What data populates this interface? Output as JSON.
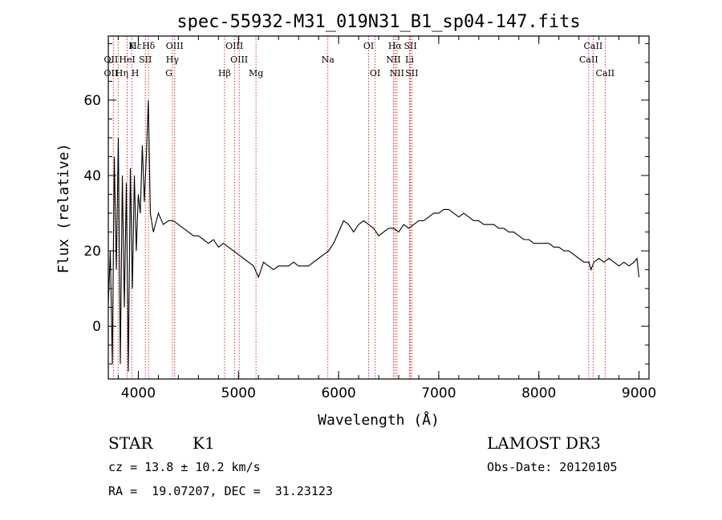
{
  "chart_data": {
    "type": "line",
    "title": "spec-55932-M31_019N31_B1_sp04-147.fits",
    "xlabel": "Wavelength (Å)",
    "ylabel": "Flux (relative)",
    "xlim": [
      3700,
      9100
    ],
    "ylim": [
      -14,
      77
    ],
    "xticks": [
      4000,
      5000,
      6000,
      7000,
      8000,
      9000
    ],
    "yticks": [
      0,
      20,
      40,
      60
    ],
    "series": [
      {
        "name": "flux",
        "x": [
          3700,
          3720,
          3740,
          3760,
          3780,
          3800,
          3820,
          3840,
          3860,
          3880,
          3900,
          3920,
          3940,
          3960,
          3980,
          4000,
          4020,
          4040,
          4060,
          4080,
          4100,
          4120,
          4150,
          4200,
          4250,
          4300,
          4350,
          4400,
          4450,
          4500,
          4550,
          4600,
          4650,
          4700,
          4750,
          4800,
          4850,
          4900,
          4950,
          5000,
          5050,
          5100,
          5150,
          5200,
          5250,
          5300,
          5350,
          5400,
          5450,
          5500,
          5550,
          5600,
          5650,
          5700,
          5750,
          5800,
          5850,
          5900,
          5950,
          6000,
          6050,
          6100,
          6150,
          6200,
          6250,
          6300,
          6350,
          6400,
          6450,
          6500,
          6550,
          6600,
          6650,
          6700,
          6750,
          6800,
          6850,
          6900,
          6950,
          7000,
          7050,
          7100,
          7150,
          7200,
          7250,
          7300,
          7350,
          7400,
          7450,
          7500,
          7550,
          7600,
          7650,
          7700,
          7750,
          7800,
          7850,
          7900,
          7950,
          8000,
          8050,
          8100,
          8150,
          8200,
          8250,
          8300,
          8350,
          8400,
          8450,
          8500,
          8520,
          8550,
          8600,
          8650,
          8700,
          8750,
          8800,
          8850,
          8900,
          8950,
          8980,
          9000
        ],
        "values": [
          6,
          20,
          -10,
          45,
          15,
          50,
          -10,
          40,
          5,
          38,
          -12,
          42,
          10,
          40,
          20,
          35,
          30,
          48,
          33,
          45,
          60,
          30,
          25,
          30,
          27,
          28,
          28,
          27,
          26,
          25,
          24,
          24,
          23,
          22,
          23,
          21,
          22,
          21,
          20,
          19,
          18,
          17,
          16,
          13,
          17,
          16,
          15,
          16,
          16,
          16,
          17,
          16,
          16,
          16,
          17,
          18,
          19,
          20,
          22,
          25,
          28,
          27,
          25,
          27,
          28,
          27,
          26,
          24,
          25,
          26,
          26,
          25,
          27,
          26,
          27,
          28,
          28,
          29,
          30,
          30,
          31,
          31,
          30,
          29,
          30,
          29,
          28,
          28,
          27,
          27,
          27,
          26,
          26,
          25,
          25,
          24,
          23,
          23,
          22,
          22,
          22,
          22,
          21,
          21,
          20,
          20,
          19,
          18,
          17,
          17,
          15,
          17,
          18,
          17,
          18,
          17,
          16,
          17,
          16,
          17,
          18,
          13
        ]
      }
    ],
    "lines_top": [
      {
        "label": "Hε",
        "x": 3970
      },
      {
        "label": "Hδ",
        "x": 4102
      },
      {
        "label": "K",
        "x": 3934
      },
      {
        "label": "OIII",
        "x": 4363
      },
      {
        "label": "OIII",
        "x": 4959
      },
      {
        "label": "OI",
        "x": 6300
      },
      {
        "label": "Hα",
        "x": 6563
      },
      {
        "label": "SII",
        "x": 6717
      },
      {
        "label": "CaII",
        "x": 8542
      }
    ],
    "lines_mid": [
      {
        "label": "OII",
        "x": 3727
      },
      {
        "label": "HeI",
        "x": 3889
      },
      {
        "label": "SII",
        "x": 4070
      },
      {
        "label": "Hγ",
        "x": 4340
      },
      {
        "label": "OIII",
        "x": 5007
      },
      {
        "label": "Na",
        "x": 5893
      },
      {
        "label": "NII",
        "x": 6548
      },
      {
        "label": "Li",
        "x": 6708
      },
      {
        "label": "CaII",
        "x": 8498
      }
    ],
    "lines_low": [
      {
        "label": "OII",
        "x": 3727
      },
      {
        "label": "Hη",
        "x": 3835
      },
      {
        "label": "H",
        "x": 3969
      },
      {
        "label": "G",
        "x": 4305
      },
      {
        "label": "Hβ",
        "x": 4861
      },
      {
        "label": "Mg",
        "x": 5175
      },
      {
        "label": "OI",
        "x": 6364
      },
      {
        "label": "NII",
        "x": 6583
      },
      {
        "label": "SII",
        "x": 6731
      },
      {
        "label": "CaII",
        "x": 8662
      }
    ],
    "extra_vlines": [
      3750,
      3798,
      3889,
      3934,
      4070,
      4102,
      4340,
      4363,
      4861,
      4959,
      5007,
      5175,
      5893,
      6300,
      6364,
      6548,
      6563,
      6583,
      6708,
      6717,
      6731,
      8498,
      8542,
      8662
    ]
  },
  "footer": {
    "object_class": "STAR",
    "subclass": "K1",
    "survey": "LAMOST DR3",
    "cz": "cz = 13.8 ± 10.2 km/s",
    "obs_date": "Obs-Date: 20120105",
    "coords": "RA =  19.07207, DEC =  31.23123"
  },
  "colors": {
    "spectrum": "#000000",
    "lines": "#cc0000",
    "frame": "#000000"
  }
}
